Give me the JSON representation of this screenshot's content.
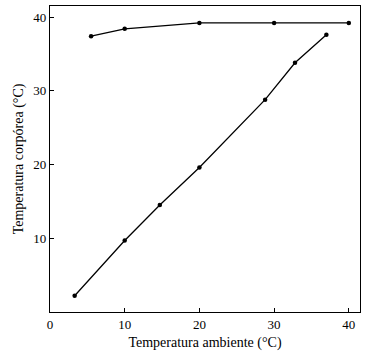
{
  "chart_data": {
    "type": "line",
    "x_label": "Temperatura ambiente (°C)",
    "y_label": "Temperatura corpórea (°C)",
    "series": [
      {
        "color": "#000000",
        "x": [
          5.5,
          10,
          20,
          30,
          40
        ],
        "values": [
          37.4,
          38.4,
          39.2,
          39.2,
          39.2
        ]
      },
      {
        "color": "#000000",
        "x": [
          3.3,
          10,
          14.7,
          20,
          28.8,
          32.8,
          37
        ],
        "values": [
          2.2,
          9.7,
          14.5,
          19.6,
          28.8,
          33.8,
          37.6
        ]
      }
    ],
    "marker": "circle",
    "line_style": "solid",
    "xlim": [
      0,
      41.5
    ],
    "ylim": [
      0,
      41.5
    ],
    "xticks": [
      0,
      10,
      20,
      30,
      40
    ],
    "yticks": [
      10,
      20,
      30,
      40
    ],
    "grid": false
  }
}
